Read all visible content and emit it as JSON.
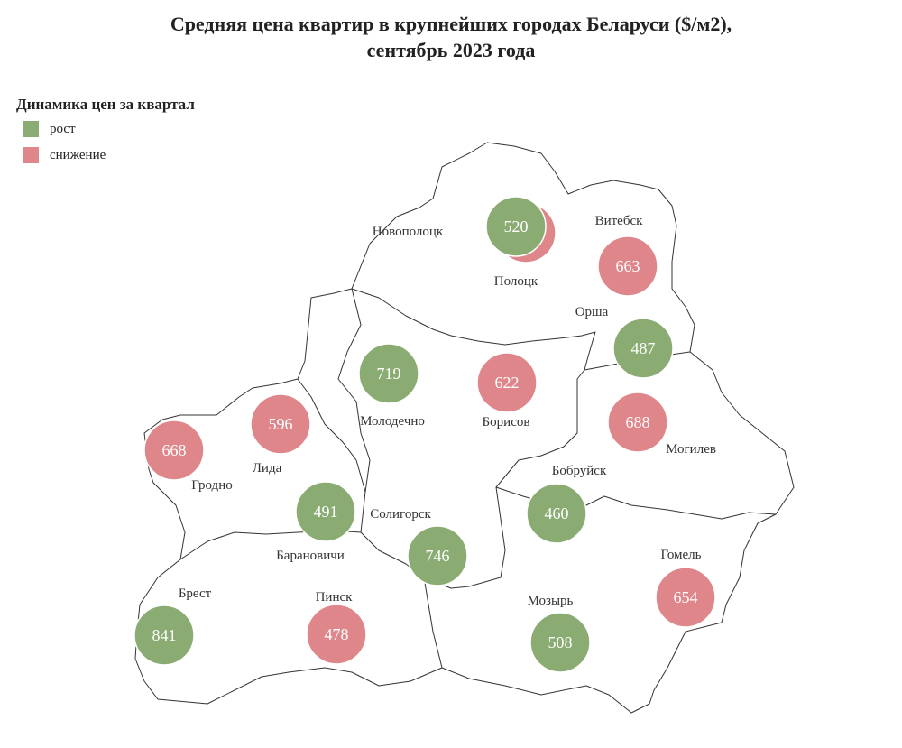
{
  "title_line1": "Средняя цена квартир в крупнейших городах Беларуси ($/м2),",
  "title_line2": "сентябрь 2023 года",
  "legend": {
    "title": "Динамика цен за квартал",
    "items": [
      {
        "label": "рост",
        "color": "#8aac72"
      },
      {
        "label": "снижение",
        "color": "#df868a"
      }
    ]
  },
  "cities": [
    {
      "name": "Полоцк",
      "value": null,
      "trend": "снижение"
    },
    {
      "name": "Новополоцк",
      "value": "520",
      "trend": "рост"
    },
    {
      "name": "Витебск",
      "value": "663",
      "trend": "снижение"
    },
    {
      "name": "Орша",
      "value": "487",
      "trend": "рост"
    },
    {
      "name": "Молодечно",
      "value": "719",
      "trend": "рост"
    },
    {
      "name": "Борисов",
      "value": "622",
      "trend": "снижение"
    },
    {
      "name": "Могилев",
      "value": "688",
      "trend": "снижение"
    },
    {
      "name": "Лида",
      "value": "596",
      "trend": "снижение"
    },
    {
      "name": "Гродно",
      "value": "668",
      "trend": "снижение"
    },
    {
      "name": "Бобруйск",
      "value": "460",
      "trend": "рост"
    },
    {
      "name": "Барановичи",
      "value": "491",
      "trend": "рост"
    },
    {
      "name": "Солигорск",
      "value": "746",
      "trend": "рост"
    },
    {
      "name": "Гомель",
      "value": "654",
      "trend": "снижение"
    },
    {
      "name": "Брест",
      "value": "841",
      "trend": "рост"
    },
    {
      "name": "Пинск",
      "value": "478",
      "trend": "снижение"
    },
    {
      "name": "Мозырь",
      "value": "508",
      "trend": "рост"
    }
  ]
}
